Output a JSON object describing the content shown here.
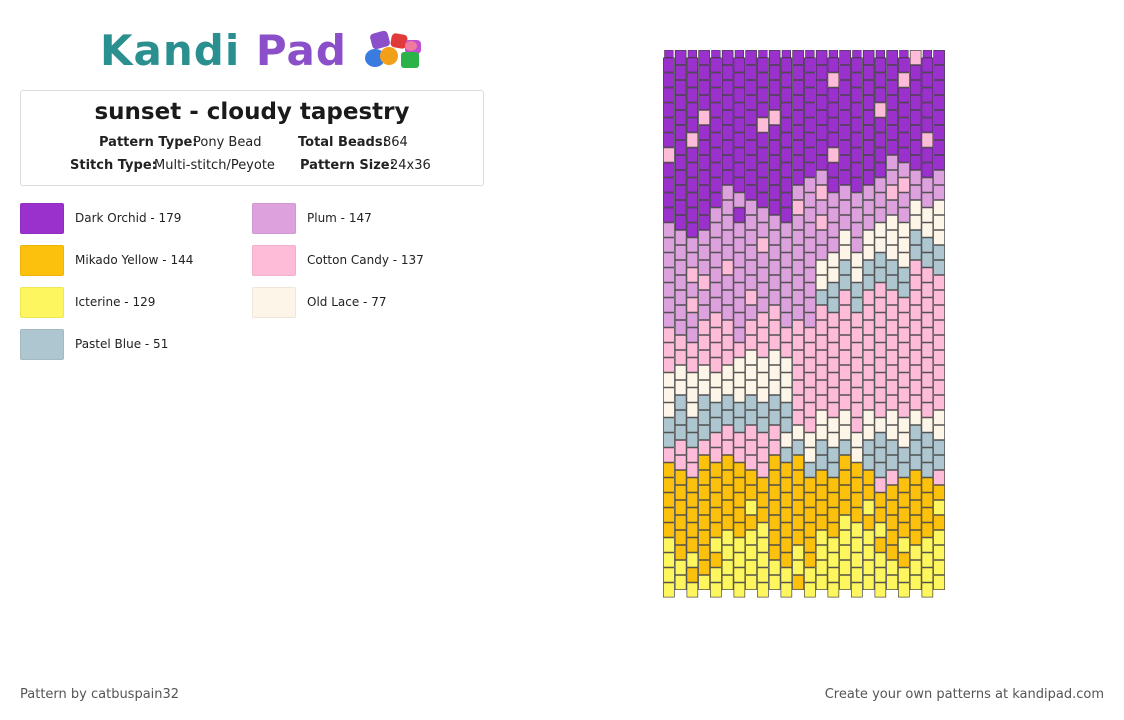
{
  "brand": {
    "part1": "Kandi",
    "part2": "Pad",
    "logo_icon": "bead-cluster-icon"
  },
  "pattern": {
    "title": "sunset - cloudy tapestry",
    "type_label": "Pattern Type:",
    "type_value": "Pony Bead",
    "beads_label": "Total Beads:",
    "beads_value": "864",
    "stitch_label": "Stitch Type:",
    "stitch_value": "Multi-stitch/Peyote",
    "size_label": "Pattern Size:",
    "size_value": "24x36",
    "columns": 24,
    "rows": 36
  },
  "legend": [
    {
      "name": "Dark Orchid - 179",
      "color": "#9a31cc"
    },
    {
      "name": "Plum - 147",
      "color": "#dda1dd"
    },
    {
      "name": "Mikado Yellow - 144",
      "color": "#fcc10d"
    },
    {
      "name": "Cotton Candy - 137",
      "color": "#ffbcd9"
    },
    {
      "name": "Icterine - 129",
      "color": "#fdf65e"
    },
    {
      "name": "Old Lace - 77",
      "color": "#fdf5e7"
    },
    {
      "name": "Pastel Blue - 51",
      "color": "#aec6cf"
    }
  ],
  "footer": {
    "author": "Pattern by catbuspain32",
    "cta": "Create your own patterns at kandipad.com"
  }
}
